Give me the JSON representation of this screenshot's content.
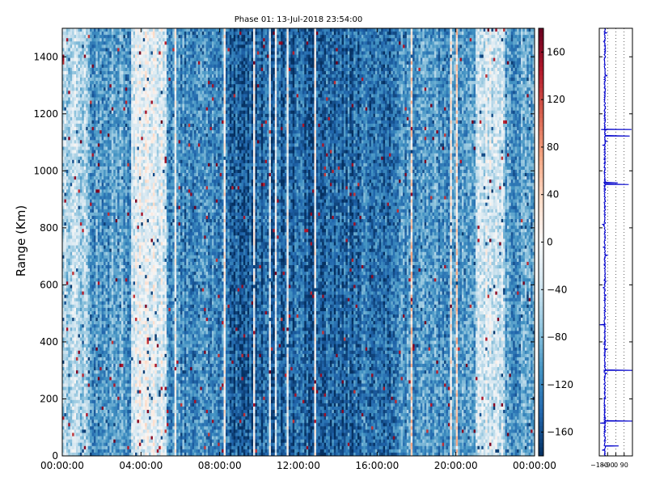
{
  "chart_data": [
    {
      "type": "heatmap",
      "title": "Phase 01: 13-Jul-2018 23:54:00",
      "xlabel": "",
      "ylabel": "Range (Km)",
      "xlim": [
        "00:00:00",
        "24:00:00"
      ],
      "ylim": [
        0,
        1500
      ],
      "x_ticks": [
        "00:00:00",
        "04:00:00",
        "08:00:00",
        "12:00:00",
        "16:00:00",
        "20:00:00",
        "00:00:00"
      ],
      "y_ticks": [
        0,
        200,
        400,
        600,
        800,
        1000,
        1200,
        1400
      ],
      "colorbar": {
        "range": [
          -180,
          180
        ],
        "ticks": [
          "−160",
          "−120",
          "−80",
          "−40",
          "0",
          "40",
          "80",
          "120",
          "160"
        ],
        "colormap": "RdBu_r",
        "colors": [
          "#053061",
          "#2166ac",
          "#4393c3",
          "#92c5de",
          "#d1e5f0",
          "#f7f7f7",
          "#fddbc7",
          "#f4a582",
          "#d6604d",
          "#b2182b",
          "#67001f"
        ]
      },
      "profile_by_column_hours": [
        {
          "from": 0,
          "to": 1.3,
          "level": 0.35
        },
        {
          "from": 1.3,
          "to": 3.5,
          "level": 0.22
        },
        {
          "from": 3.5,
          "to": 5.3,
          "level": 0.45
        },
        {
          "from": 5.3,
          "to": 8.5,
          "level": 0.18
        },
        {
          "from": 8.5,
          "to": 14,
          "level": 0.1
        },
        {
          "from": 14,
          "to": 17,
          "level": 0.12
        },
        {
          "from": 17,
          "to": 21,
          "level": 0.2
        },
        {
          "from": 21,
          "to": 22.5,
          "level": 0.4
        },
        {
          "from": 22.5,
          "to": 24,
          "level": 0.22
        }
      ]
    },
    {
      "type": "line",
      "title": "",
      "xlabel": "",
      "ylabel": "",
      "xlim": [
        -180,
        180
      ],
      "ylim": [
        0,
        1500
      ],
      "x_ticks": [
        "−180",
        "−90",
        "0",
        "90"
      ],
      "grid": "x-dotted",
      "color": "#0000cc",
      "baseline": -120,
      "spikes": [
        {
          "y": 1122,
          "x": 150
        },
        {
          "y": 1145,
          "x": -160
        },
        {
          "y": 1145,
          "x": 170
        },
        {
          "y": 958,
          "x": 20
        },
        {
          "y": 952,
          "x": 140
        },
        {
          "y": 460,
          "x": -175
        },
        {
          "y": 300,
          "x": 180
        },
        {
          "y": 122,
          "x": 180
        },
        {
          "y": 115,
          "x": -170
        },
        {
          "y": 35,
          "x": 30
        },
        {
          "y": 20,
          "x": -150
        }
      ]
    }
  ]
}
